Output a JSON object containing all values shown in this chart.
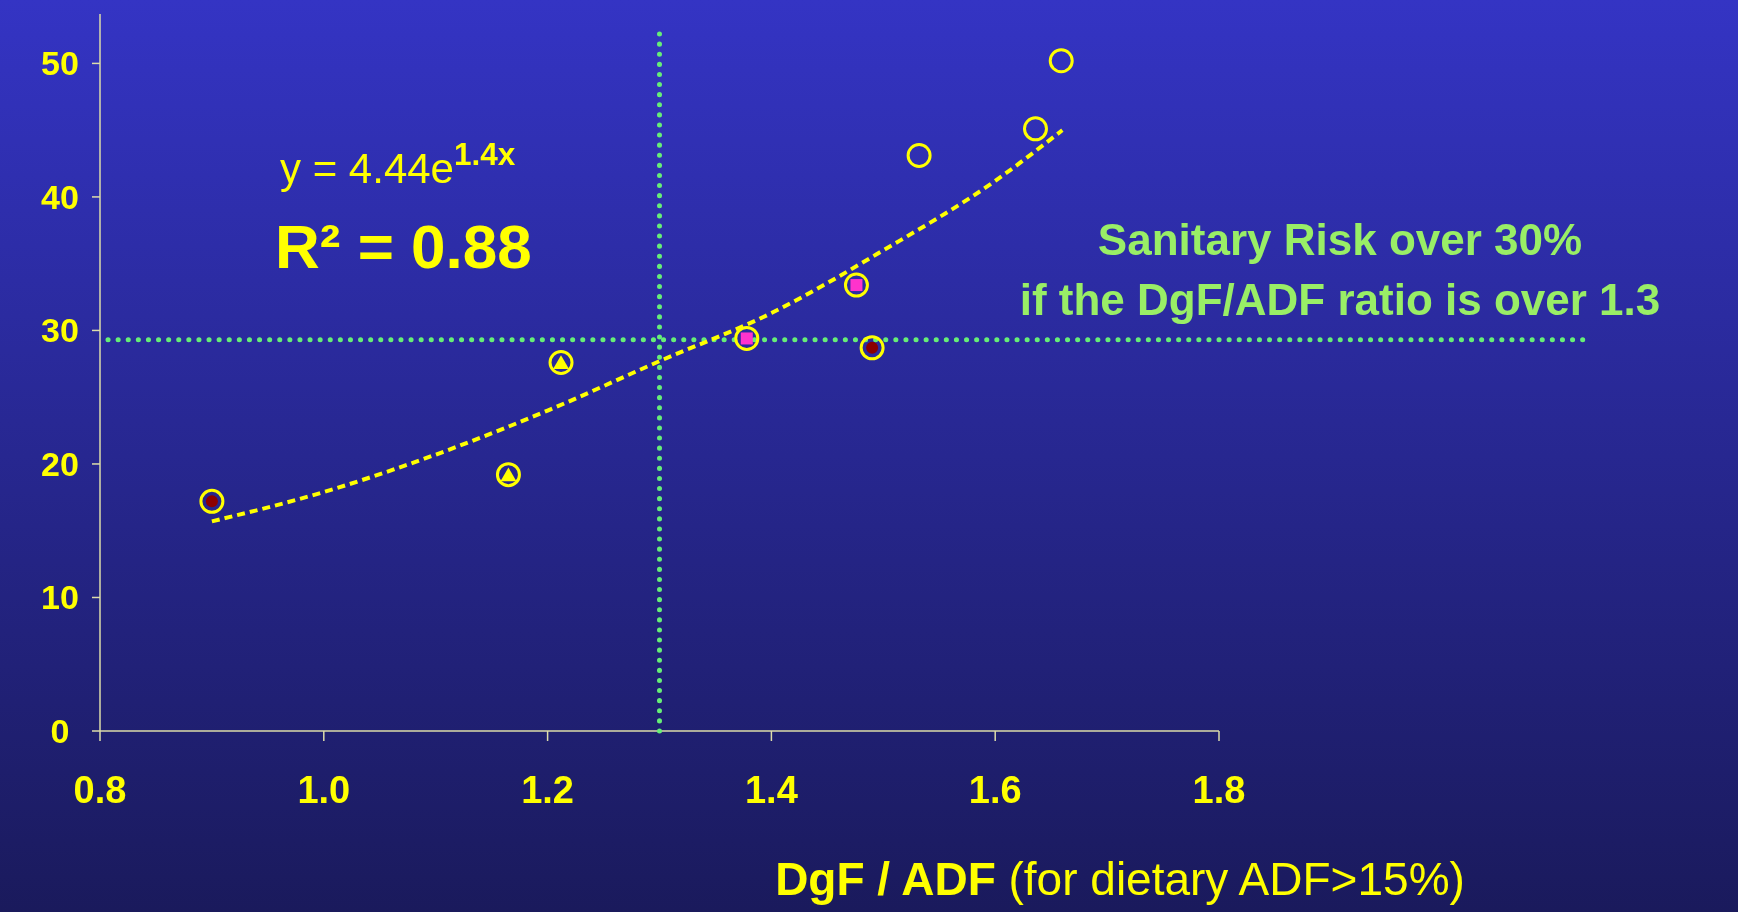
{
  "chart_data": {
    "type": "scatter",
    "xlabel": "DgF / ADF (for dietary ADF>15%)",
    "xlim": [
      0.8,
      1.8
    ],
    "xticks": [
      0.8,
      {
        "value": 1,
        "label": "1.0"
      },
      1.2,
      1.4,
      1.6,
      1.8
    ],
    "ylim": [
      0,
      53.7
    ],
    "yticks": [
      0,
      10,
      20,
      30,
      40,
      50
    ],
    "grid": false,
    "series": [
      {
        "color": "#8b0000",
        "x": [
          0.9,
          1.49
        ],
        "values": [
          17.2,
          28.7
        ]
      },
      {
        "color": "#ffff00",
        "x": [
          1.165,
          1.212
        ],
        "values": [
          19.2,
          27.6
        ]
      },
      {
        "color": "#ff33cc",
        "x": [
          1.378,
          1.476
        ],
        "values": [
          29.4,
          33.4
        ]
      },
      {
        "color": "#ffff00",
        "x": [
          1.532,
          1.636,
          1.659
        ],
        "values": [
          43.1,
          45.1,
          50.2
        ]
      },
      {
        "type": "line",
        "color": "#ffff00",
        "line_style": "dashed",
        "x": [
          0.9,
          1.0,
          1.1,
          1.2,
          1.3,
          1.4,
          1.5,
          1.6,
          1.66
        ],
        "values": [
          15.7,
          17.9,
          20.7,
          24.0,
          27.7,
          31.3,
          36.0,
          41.2,
          45.0
        ]
      }
    ],
    "ref_lines": [
      {
        "axis": "x",
        "value": 1.3,
        "color": "#66ee77",
        "line_style": "dotted"
      },
      {
        "axis": "y",
        "value": 29.3,
        "color": "#66ee77",
        "line_style": "dotted"
      }
    ],
    "annotations": [
      "y = 4.44e$^{1.4x}$",
      "R² = 0.88",
      "Sanitary Risk over 30%\nif the DgF/ADF ratio is over 1.3"
    ]
  }
}
